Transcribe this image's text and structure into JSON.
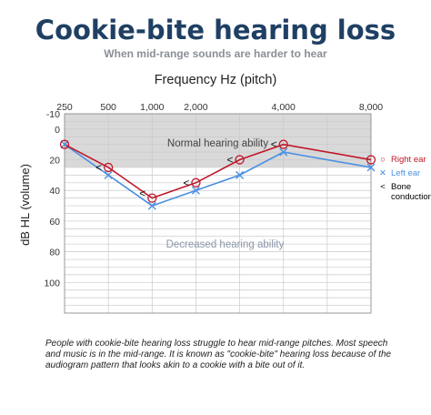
{
  "header": {
    "title": "Cookie-bite hearing loss",
    "subtitle": "When mid-range sounds are harder to hear"
  },
  "chart_data": {
    "type": "line",
    "title": "Frequency Hz (pitch)",
    "xlabel": "Frequency Hz (pitch)",
    "ylabel": "dB HL  (volume)",
    "x_ticks": [
      "250",
      "500",
      "1,000",
      "2,000",
      "3,000",
      "4,000",
      "6,000",
      "8,000"
    ],
    "x_tick_labels_shown": [
      "250",
      "500",
      "1,000",
      "2,000",
      "4,000",
      "8,000"
    ],
    "y_ticks": [
      "-10",
      "0",
      "20",
      "40",
      "60",
      "80",
      "100"
    ],
    "ylim": [
      -10,
      120
    ],
    "y_inverted": true,
    "grid": true,
    "series": [
      {
        "name": "Right ear",
        "color": "#c0182b",
        "marker": "circle",
        "x": [
          "250",
          "500",
          "1,000",
          "2,000",
          "3,000",
          "4,000",
          "8,000"
        ],
        "values": [
          10,
          25,
          45,
          35,
          20,
          10,
          20
        ]
      },
      {
        "name": "Left ear",
        "color": "#4a90e2",
        "marker": "x",
        "x": [
          "250",
          "500",
          "1,000",
          "2,000",
          "3,000",
          "4,000",
          "8,000"
        ],
        "values": [
          10,
          30,
          50,
          40,
          30,
          15,
          25
        ]
      },
      {
        "name": "Bone conduction",
        "marker": "<",
        "x": [
          "500",
          "1,000",
          "2,000",
          "3,000",
          "4,000"
        ],
        "values": [
          25,
          42,
          35,
          20,
          10
        ]
      }
    ],
    "annotations": [
      {
        "text": "Normal hearing ability",
        "band": [
          -10,
          25
        ]
      },
      {
        "text": "Decreased hearing ability",
        "y": 75
      }
    ],
    "legend_position": "right"
  },
  "legend": {
    "items": [
      {
        "symbol": "○",
        "label": "Right ear",
        "color": "#c0182b"
      },
      {
        "symbol": "✕",
        "label": "Left ear",
        "color": "#4a90e2"
      },
      {
        "symbol": "<",
        "label": "Bone conduction",
        "color": "#222222"
      }
    ]
  },
  "caption": "People with cookie-bite hearing loss struggle to hear mid-range pitches. Most speech and music is in the mid-range. It is known as \"cookie-bite\" hearing loss because of the audiogram pattern that looks akin to a cookie with a bite out of it."
}
